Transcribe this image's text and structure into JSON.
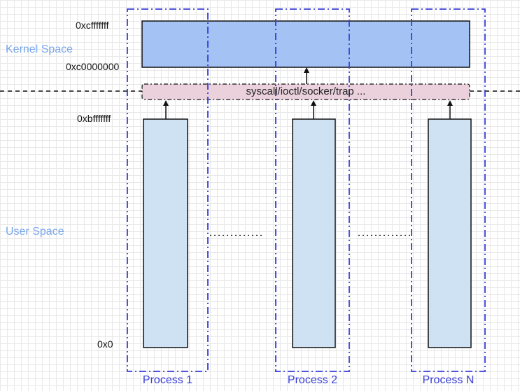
{
  "labels": {
    "kernel_space": "Kernel Space",
    "user_space": "User Space",
    "addr_kernel_top": "0xcfffffff",
    "addr_kernel_base": "0xc0000000",
    "addr_user_top": "0xbfffffff",
    "addr_zero": "0x0",
    "syscall": "syscall/ioctl/socker/trap ..."
  },
  "processes": [
    {
      "name": "Process 1"
    },
    {
      "name": "Process 2"
    },
    {
      "name": "Process N"
    }
  ],
  "colors": {
    "kernel_block": "#a4c2f4",
    "user_block": "#cfe2f3",
    "syscall_band": "#ead1dc",
    "process_border": "#3a3fd8",
    "text_light_blue": "#7aa7ea",
    "outline": "#111111"
  }
}
